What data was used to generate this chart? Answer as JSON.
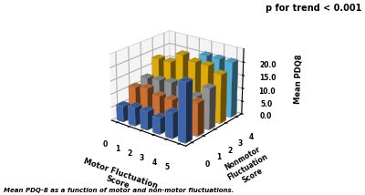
{
  "title": "p for trend < 0.001",
  "xlabel": "Motor Fluctuation\nScore",
  "ylabel": "Mean PDQ8",
  "nonmotor_label": "Nonmotor\nFluctuation\nScore",
  "caption": "Mean PDQ-8 as a function of motor and non-motor fluctuations.",
  "motor_scores": [
    0,
    1,
    2,
    3,
    4,
    5
  ],
  "nonmotor_scores": [
    0,
    1,
    2,
    3,
    4
  ],
  "values": [
    [
      6.0,
      7.0,
      7.0,
      6.0,
      9.5,
      22.0
    ],
    [
      11.0,
      12.0,
      10.5,
      10.5,
      10.5,
      12.5
    ],
    [
      12.5,
      13.0,
      13.5,
      13.0,
      11.0,
      15.5
    ],
    [
      18.0,
      18.0,
      22.0,
      20.5,
      20.5,
      18.5
    ],
    [
      0,
      0,
      0,
      21.0,
      21.0,
      21.0
    ]
  ],
  "bar_colors": [
    "#4472C4",
    "#ED7D31",
    "#A5A5A5",
    "#FFC000",
    "#5BC8F5"
  ],
  "bar_width": 0.55,
  "bar_depth": 0.55,
  "zlim": [
    0,
    25
  ],
  "zticks": [
    0.0,
    5.0,
    10.0,
    15.0,
    20.0
  ],
  "background_color": "#FFFFFF",
  "figsize": [
    4.0,
    2.14
  ],
  "dpi": 100,
  "elev": 22,
  "azim": -52
}
